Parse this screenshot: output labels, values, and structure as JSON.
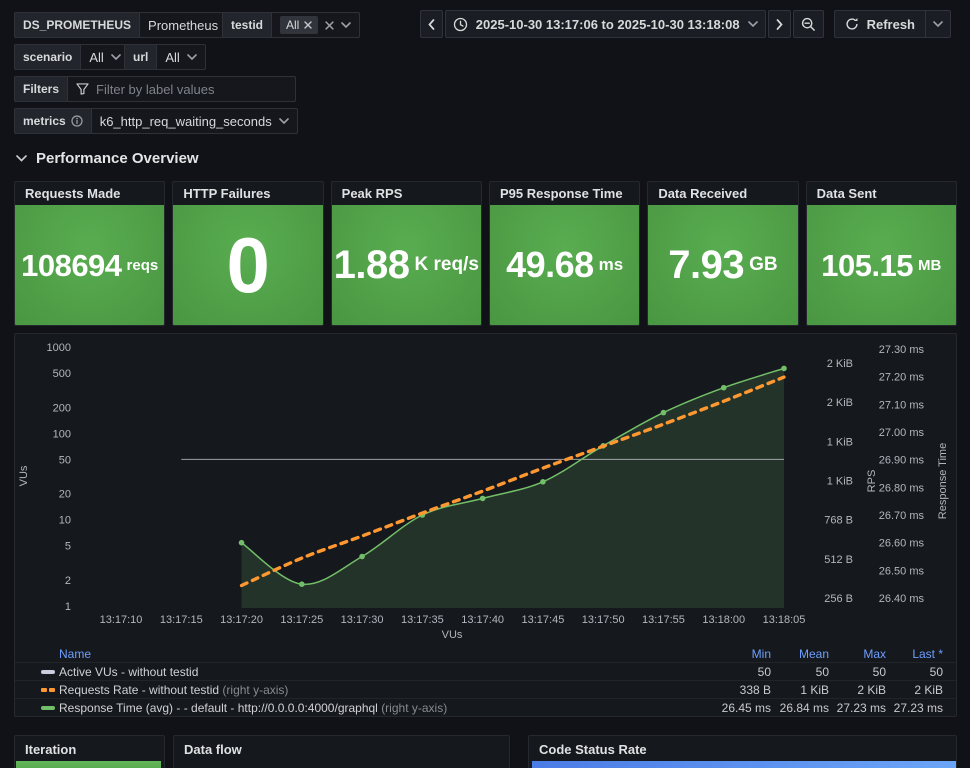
{
  "variables": {
    "ds": {
      "label": "DS_PROMETHEUS",
      "value": "Prometheus"
    },
    "testid": {
      "label": "testid",
      "chip": "All"
    },
    "scenario": {
      "label": "scenario",
      "value": "All"
    },
    "url": {
      "label": "url",
      "value": "All"
    },
    "filters": {
      "label": "Filters",
      "placeholder": "Filter by label values"
    },
    "metrics": {
      "label": "metrics",
      "value": "k6_http_req_waiting_seconds"
    }
  },
  "timebar": {
    "range": "2025-10-30 13:17:06 to 2025-10-30 13:18:08",
    "refresh_label": "Refresh"
  },
  "section": {
    "title": "Performance Overview"
  },
  "stats": [
    {
      "title": "Requests Made",
      "value": "108694",
      "unit": "reqs"
    },
    {
      "title": "HTTP Failures",
      "value": "0",
      "unit": ""
    },
    {
      "title": "Peak RPS",
      "value": "1.88",
      "unit": "K req/s"
    },
    {
      "title": "P95 Response Time",
      "value": "49.68",
      "unit": "ms"
    },
    {
      "title": "Data Received",
      "value": "7.93",
      "unit": "GB"
    },
    {
      "title": "Data Sent",
      "value": "105.15",
      "unit": "MB"
    }
  ],
  "chart_data": {
    "type": "line",
    "x_ticks": [
      "13:17:10",
      "13:17:15",
      "13:17:20",
      "13:17:25",
      "13:17:30",
      "13:17:35",
      "13:17:40",
      "13:17:45",
      "13:17:50",
      "13:17:55",
      "13:18:00",
      "13:18:05"
    ],
    "xlabel": "VUs",
    "left_axis": {
      "label": "VUs",
      "scale": "log",
      "ticks": [
        "1000",
        "500",
        "200",
        "100",
        "50",
        "20",
        "10",
        "5",
        "2",
        "1"
      ],
      "domain": [
        1,
        1000
      ]
    },
    "right_axis_rps": {
      "label": "RPS",
      "ticks": [
        "2 KiB",
        "2 KiB",
        "1 KiB",
        "1 KiB",
        "768 B",
        "512 B",
        "256 B"
      ]
    },
    "right_axis_rt": {
      "label": "Response Time",
      "ticks": [
        "27.30 ms",
        "27.20 ms",
        "27.10 ms",
        "27.00 ms",
        "26.90 ms",
        "26.80 ms",
        "26.70 ms",
        "26.60 ms",
        "26.50 ms",
        "26.40 ms"
      ],
      "domain_ms": [
        26.4,
        27.3
      ]
    },
    "series": [
      {
        "name": "Active VUs - without testid",
        "axis": "left",
        "style": "solid",
        "start_tick": 1,
        "end_tick": 11,
        "values": [
          50,
          50
        ]
      },
      {
        "name": "Requests Rate - without testid",
        "axis": "rps",
        "style": "dashed",
        "start_tick": 2,
        "values_bytes": [
          338,
          517,
          661,
          811,
          955,
          1105,
          1248,
          1392,
          1542,
          1700
        ]
      },
      {
        "name": "Response Time (avg) - - default - http://0.0.0.0:4000/graphql",
        "axis": "rt",
        "style": "solid",
        "points": true,
        "fill": true,
        "start_tick": 2,
        "values_ms": [
          26.6,
          26.45,
          26.55,
          26.7,
          26.76,
          26.82,
          26.95,
          27.07,
          27.16,
          27.23
        ]
      }
    ]
  },
  "legend": {
    "columns": [
      "Name",
      "Min",
      "Mean",
      "Max",
      "Last *"
    ],
    "rows": [
      {
        "name": "Active VUs - without testid",
        "suffix": "",
        "dash": false,
        "color": "#ccccdc",
        "min": "50",
        "mean": "50",
        "max": "50",
        "last": "50"
      },
      {
        "name": "Requests Rate - without testid",
        "suffix": "(right y-axis)",
        "dash": true,
        "color": "#ff9830",
        "min": "338 B",
        "mean": "1 KiB",
        "max": "2 KiB",
        "last": "2 KiB"
      },
      {
        "name": "Response Time (avg) - - default - http://0.0.0.0:4000/graphql",
        "suffix": "(right y-axis)",
        "dash": false,
        "color": "#73bf69",
        "min": "26.45 ms",
        "mean": "26.84 ms",
        "max": "27.23 ms",
        "last": "27.23 ms"
      }
    ]
  },
  "bottom_panels": [
    {
      "title": "Iteration"
    },
    {
      "title": "Data flow"
    },
    {
      "title": "Code Status Rate"
    }
  ],
  "colors": {
    "stat_green_light": "#59ad50",
    "stat_green_dark": "#4a9642",
    "series_vus": "#ccccdc",
    "series_rps": "#ff9830",
    "series_rt": "#73bf69",
    "legend_header_blue": "#6e9fff",
    "iteration_bar_top": "#63b659",
    "iteration_bar": "#56a64b",
    "code_bar_left": "#4b7ce6",
    "code_bar_right": "#6ba5f7",
    "axis_text": "#b4b6bf"
  }
}
